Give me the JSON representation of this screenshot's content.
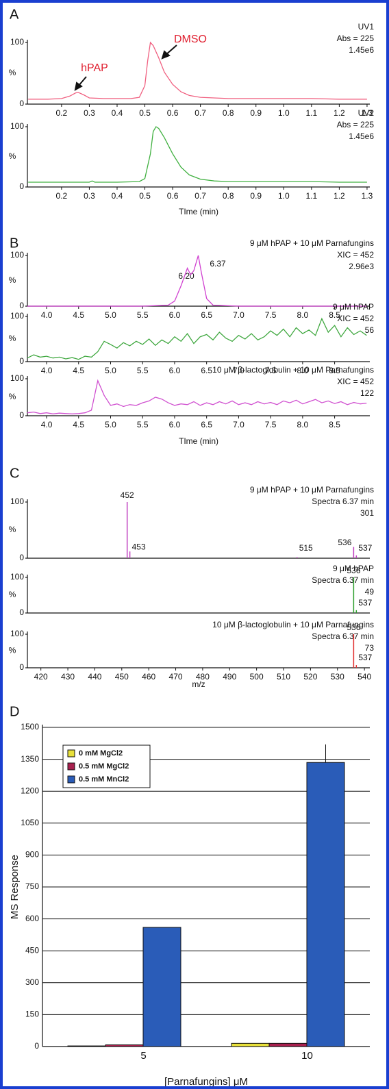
{
  "chart_data": [
    {
      "type": "line",
      "panel": "A",
      "labels": [
        "UV1",
        "Abs = 225",
        "1.45e6"
      ],
      "y_label": "%",
      "annotations": [
        "hPAP",
        "DMSO"
      ],
      "x": [
        0.08,
        0.15,
        0.2,
        0.23,
        0.25,
        0.26,
        0.28,
        0.3,
        0.35,
        0.4,
        0.45,
        0.48,
        0.5,
        0.51,
        0.52,
        0.53,
        0.55,
        0.57,
        0.6,
        0.63,
        0.66,
        0.7,
        0.75,
        0.8,
        0.9,
        1.0,
        1.1,
        1.2,
        1.3
      ],
      "series": [
        {
          "color": "#f06080",
          "values": [
            8,
            8,
            9,
            13,
            18,
            19,
            15,
            10,
            9,
            9,
            9,
            11,
            30,
            70,
            100,
            95,
            75,
            52,
            32,
            20,
            14,
            11,
            10,
            9,
            9,
            9,
            9,
            8,
            8
          ]
        }
      ],
      "xlim": [
        0.077,
        1.31
      ],
      "ylim": [
        0,
        100
      ],
      "yticks": [
        0,
        100
      ],
      "xticks": [
        0.2,
        0.3,
        0.4,
        0.5,
        0.6,
        0.7,
        0.8,
        0.9,
        {
          "value": 1,
          "label": "1.0"
        },
        1.1,
        1.2,
        1.3
      ]
    },
    {
      "type": "line",
      "labels": [
        "UV2",
        "Abs = 225",
        "1.45e6"
      ],
      "y_label": "%",
      "x_label": "TIme (min)",
      "x": [
        0.08,
        0.2,
        0.3,
        0.31,
        0.32,
        0.4,
        0.48,
        0.5,
        0.52,
        0.53,
        0.54,
        0.55,
        0.57,
        0.6,
        0.63,
        0.66,
        0.7,
        0.75,
        0.8,
        0.9,
        1.0,
        1.1,
        1.2,
        1.3
      ],
      "series": [
        {
          "color": "#40b040",
          "values": [
            8,
            8,
            8,
            10,
            8,
            8,
            9,
            14,
            55,
            92,
            100,
            97,
            82,
            55,
            33,
            20,
            13,
            10,
            9,
            9,
            9,
            9,
            8,
            8
          ]
        }
      ],
      "xlim": [
        0.077,
        1.31
      ],
      "ylim": [
        0,
        100
      ],
      "yticks": [
        0,
        100
      ],
      "xticks": [
        0.2,
        0.3,
        0.4,
        0.5,
        0.6,
        0.7,
        0.8,
        0.9,
        {
          "value": 1,
          "label": "1.0"
        },
        1.1,
        1.2,
        1.3
      ]
    },
    {
      "type": "line",
      "panel": "B",
      "labels": [
        "9 μM hPAP + 10 μM Parnafungins",
        "XIC = 452",
        "2.96e3"
      ],
      "y_label": "%",
      "annotations": [
        "6.20",
        "6.37"
      ],
      "x": [
        3.7,
        4.5,
        5.5,
        5.9,
        6.0,
        6.1,
        6.2,
        6.25,
        6.3,
        6.37,
        6.42,
        6.5,
        6.6,
        7,
        9
      ],
      "series": [
        {
          "color": "#d040d0",
          "values": [
            0,
            0,
            0,
            2,
            10,
            40,
            75,
            62,
            70,
            100,
            65,
            15,
            2,
            0,
            0
          ]
        }
      ],
      "xlim": [
        3.7,
        9.05
      ],
      "ylim": [
        0,
        100
      ],
      "yticks": [
        0,
        100
      ],
      "xticks": [
        {
          "value": 4,
          "label": "4.0"
        },
        4.5,
        {
          "value": 5,
          "label": "5.0"
        },
        5.5,
        {
          "value": 6,
          "label": "6.0"
        },
        6.5,
        {
          "value": 7,
          "label": "7.0"
        },
        7.5,
        {
          "value": 8,
          "label": "8.0"
        },
        8.5
      ]
    },
    {
      "type": "line",
      "labels": [
        "9 μM hPAP",
        "XIC = 452",
        "56"
      ],
      "y_label": "%",
      "x": [
        3.7,
        3.8,
        3.9,
        4.0,
        4.1,
        4.2,
        4.3,
        4.4,
        4.5,
        4.6,
        4.7,
        4.8,
        4.9,
        5.0,
        5.1,
        5.2,
        5.3,
        5.4,
        5.5,
        5.6,
        5.7,
        5.8,
        5.9,
        6.0,
        6.1,
        6.2,
        6.3,
        6.4,
        6.5,
        6.6,
        6.7,
        6.8,
        6.9,
        7.0,
        7.1,
        7.2,
        7.3,
        7.4,
        7.5,
        7.6,
        7.7,
        7.8,
        7.9,
        8.0,
        8.1,
        8.2,
        8.3,
        8.4,
        8.5,
        8.6,
        8.7,
        8.8,
        8.9,
        9.0
      ],
      "series": [
        {
          "color": "#40a840",
          "values": [
            8,
            15,
            10,
            12,
            8,
            10,
            6,
            9,
            5,
            12,
            10,
            22,
            45,
            38,
            30,
            42,
            35,
            45,
            38,
            50,
            36,
            48,
            40,
            55,
            45,
            62,
            40,
            55,
            60,
            48,
            65,
            52,
            45,
            58,
            50,
            62,
            48,
            55,
            68,
            58,
            72,
            55,
            75,
            62,
            70,
            58,
            95,
            65,
            80,
            55,
            75,
            60,
            68,
            58
          ]
        }
      ],
      "xlim": [
        3.7,
        9.05
      ],
      "ylim": [
        0,
        100
      ],
      "yticks": [
        0,
        100
      ],
      "xticks": [
        {
          "value": 4,
          "label": "4.0"
        },
        4.5,
        {
          "value": 5,
          "label": "5.0"
        },
        5.5,
        {
          "value": 6,
          "label": "6.0"
        },
        6.5,
        {
          "value": 7,
          "label": "7.0"
        },
        7.5,
        {
          "value": 8,
          "label": "8.0"
        },
        8.5
      ]
    },
    {
      "type": "line",
      "labels": [
        "10 μM β-lactoglobulin + 10 μM Parnafungins",
        "XIC = 452",
        "122"
      ],
      "y_label": "%",
      "x_label": "TIme (min)",
      "x": [
        3.7,
        3.8,
        3.9,
        4.0,
        4.1,
        4.2,
        4.3,
        4.4,
        4.5,
        4.6,
        4.7,
        4.8,
        4.9,
        5.0,
        5.1,
        5.2,
        5.3,
        5.4,
        5.5,
        5.6,
        5.7,
        5.8,
        5.9,
        6.0,
        6.1,
        6.2,
        6.3,
        6.4,
        6.5,
        6.6,
        6.7,
        6.8,
        6.9,
        7.0,
        7.1,
        7.2,
        7.3,
        7.4,
        7.5,
        7.6,
        7.7,
        7.8,
        7.9,
        8.0,
        8.1,
        8.2,
        8.3,
        8.4,
        8.5,
        8.6,
        8.7,
        8.8,
        8.9,
        9.0
      ],
      "series": [
        {
          "color": "#d050d0",
          "values": [
            8,
            10,
            6,
            8,
            5,
            7,
            6,
            5,
            6,
            8,
            15,
            95,
            55,
            28,
            32,
            25,
            30,
            28,
            35,
            40,
            50,
            45,
            35,
            28,
            32,
            30,
            38,
            28,
            35,
            30,
            38,
            32,
            40,
            30,
            35,
            30,
            38,
            32,
            36,
            30,
            40,
            35,
            42,
            32,
            38,
            44,
            35,
            40,
            33,
            38,
            30,
            36,
            32,
            34
          ]
        }
      ],
      "xlim": [
        3.7,
        9.05
      ],
      "ylim": [
        0,
        100
      ],
      "yticks": [
        0,
        100
      ],
      "xticks": [
        {
          "value": 4,
          "label": "4.0"
        },
        4.5,
        {
          "value": 5,
          "label": "5.0"
        },
        5.5,
        {
          "value": 6,
          "label": "6.0"
        },
        6.5,
        {
          "value": 7,
          "label": "7.0"
        },
        7.5,
        {
          "value": 8,
          "label": "8.0"
        },
        8.5
      ]
    },
    {
      "type": "stem",
      "panel": "C",
      "labels": [
        "9 μM hPAP + 10 μM Parnafungins",
        "Spectra 6.37 min",
        "301"
      ],
      "y_label": "%",
      "x": [
        452,
        453,
        515,
        536,
        537
      ],
      "series": [
        {
          "color": "#c040c0",
          "values": [
            100,
            12,
            2,
            20,
            5
          ]
        }
      ],
      "xlim": [
        415,
        542
      ],
      "ylim": [
        0,
        100
      ],
      "yticks": [
        0,
        100
      ]
    },
    {
      "type": "stem",
      "labels": [
        "9 μM hPAP",
        "Spectra 6.37 min",
        "49"
      ],
      "y_label": "%",
      "x": [
        536,
        537
      ],
      "series": [
        {
          "color": "#30a030",
          "values": [
            100,
            8
          ]
        }
      ],
      "xlim": [
        415,
        542
      ],
      "ylim": [
        0,
        100
      ],
      "yticks": [
        0,
        100
      ]
    },
    {
      "type": "stem",
      "labels": [
        "10 μM β-lactoglobulin + 10 μM Parnafungins",
        "Spectra 6.37 min",
        "73"
      ],
      "y_label": "%",
      "x_label": "m/z",
      "x": [
        536,
        537
      ],
      "series": [
        {
          "color": "#e03030",
          "values": [
            100,
            8
          ]
        }
      ],
      "xlim": [
        415,
        542
      ],
      "ylim": [
        0,
        100
      ],
      "yticks": [
        0,
        100
      ],
      "xticks": [
        420,
        430,
        440,
        450,
        460,
        470,
        480,
        490,
        500,
        510,
        520,
        530,
        540
      ]
    },
    {
      "type": "bar",
      "panel": "D",
      "y_label": "MS Response",
      "x_label": "[Parnafungins] μM",
      "grid": true,
      "categories": [
        "5",
        "10"
      ],
      "series": [
        {
          "name": "0 mM MgCl2",
          "color": "#e8e03a",
          "values": [
            3,
            15
          ]
        },
        {
          "name": "0.5 mM MgCl2",
          "color": "#a8204e",
          "values": [
            8,
            15
          ]
        },
        {
          "name": "0.5 mM MnCl2",
          "color": "#2a5cb8",
          "values": [
            560,
            1335
          ],
          "errors": [
            null,
            85
          ]
        }
      ],
      "ylim": [
        0,
        1500
      ],
      "yticks": [
        0,
        150,
        300,
        450,
        600,
        750,
        900,
        1050,
        1200,
        1350,
        1500
      ]
    }
  ]
}
